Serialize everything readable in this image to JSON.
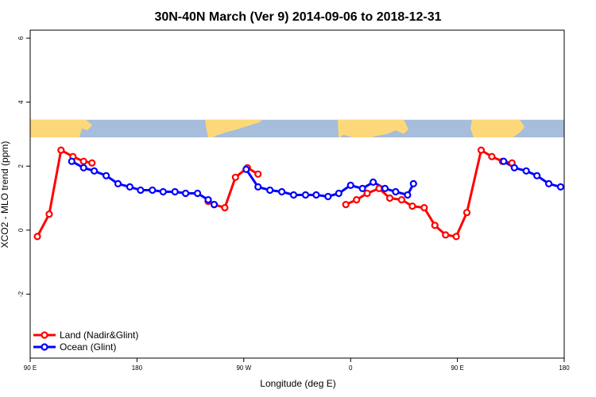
{
  "chart_data": {
    "type": "line",
    "title": "30N-40N March (Ver 9)   2014-09-06 to 2018-12-31",
    "xlabel": "Longitude (deg E)",
    "ylabel": "XCO2 - MLO trend (ppm)",
    "xlim": [
      90,
      540
    ],
    "ylim": [
      -4,
      6.25
    ],
    "x_ticks": [
      {
        "value": 90,
        "label": "90 E"
      },
      {
        "value": 180,
        "label": "180"
      },
      {
        "value": 270,
        "label": "90 W"
      },
      {
        "value": 360,
        "label": "0"
      },
      {
        "value": 450,
        "label": "90 E"
      },
      {
        "value": 540,
        "label": "180"
      }
    ],
    "y_ticks": [
      {
        "value": -2,
        "label": "-2"
      },
      {
        "value": 0,
        "label": "0"
      },
      {
        "value": 2,
        "label": "2"
      },
      {
        "value": 4,
        "label": "4"
      },
      {
        "value": 6,
        "label": "6"
      }
    ],
    "map_band": {
      "y_min": 2.9,
      "y_max": 3.45,
      "ocean_color": "#A6BDDB",
      "land_color": "#FDD87A"
    },
    "legend": {
      "position": "bottom-left"
    },
    "series": [
      {
        "name": "Land (Nadir&Glint)",
        "color": "#FF0000",
        "segments": [
          [
            [
              96,
              -0.2
            ],
            [
              106,
              0.5
            ],
            [
              116,
              2.5
            ],
            [
              126,
              2.3
            ],
            [
              135,
              2.15
            ],
            [
              142,
              2.1
            ]
          ],
          [
            [
              240,
              0.9
            ],
            [
              245,
              0.8
            ],
            [
              254,
              0.7
            ],
            [
              263,
              1.65
            ],
            [
              273,
              1.95
            ],
            [
              282,
              1.75
            ]
          ],
          [
            [
              356,
              0.8
            ],
            [
              365,
              0.95
            ],
            [
              374,
              1.15
            ],
            [
              384,
              1.3
            ],
            [
              393,
              1.0
            ],
            [
              403,
              0.95
            ],
            [
              412,
              0.75
            ],
            [
              422,
              0.7
            ],
            [
              431,
              0.15
            ],
            [
              440,
              -0.15
            ],
            [
              449,
              -0.2
            ],
            [
              458,
              0.55
            ],
            [
              470,
              2.5
            ],
            [
              479,
              2.3
            ],
            [
              488,
              2.15
            ],
            [
              496,
              2.1
            ]
          ]
        ]
      },
      {
        "name": "Ocean (Glint)",
        "color": "#0000FF",
        "segments": [
          [
            [
              125,
              2.15
            ],
            [
              135,
              1.95
            ],
            [
              144,
              1.85
            ],
            [
              154,
              1.7
            ],
            [
              164,
              1.45
            ],
            [
              174,
              1.35
            ],
            [
              183,
              1.25
            ],
            [
              193,
              1.25
            ],
            [
              202,
              1.2
            ],
            [
              212,
              1.2
            ],
            [
              221,
              1.15
            ],
            [
              231,
              1.15
            ],
            [
              240,
              0.95
            ],
            [
              245,
              0.8
            ]
          ],
          [
            [
              272,
              1.9
            ],
            [
              282,
              1.35
            ],
            [
              292,
              1.25
            ],
            [
              302,
              1.2
            ],
            [
              312,
              1.1
            ],
            [
              322,
              1.1
            ],
            [
              331,
              1.1
            ],
            [
              341,
              1.05
            ],
            [
              350,
              1.15
            ],
            [
              360,
              1.4
            ],
            [
              370,
              1.3
            ],
            [
              379,
              1.5
            ],
            [
              389,
              1.3
            ],
            [
              398,
              1.2
            ],
            [
              408,
              1.1
            ],
            [
              413,
              1.45
            ]
          ],
          [
            [
              489,
              2.15
            ],
            [
              498,
              1.95
            ],
            [
              508,
              1.85
            ],
            [
              517,
              1.7
            ],
            [
              527,
              1.45
            ],
            [
              537,
              1.35
            ]
          ]
        ]
      }
    ]
  }
}
